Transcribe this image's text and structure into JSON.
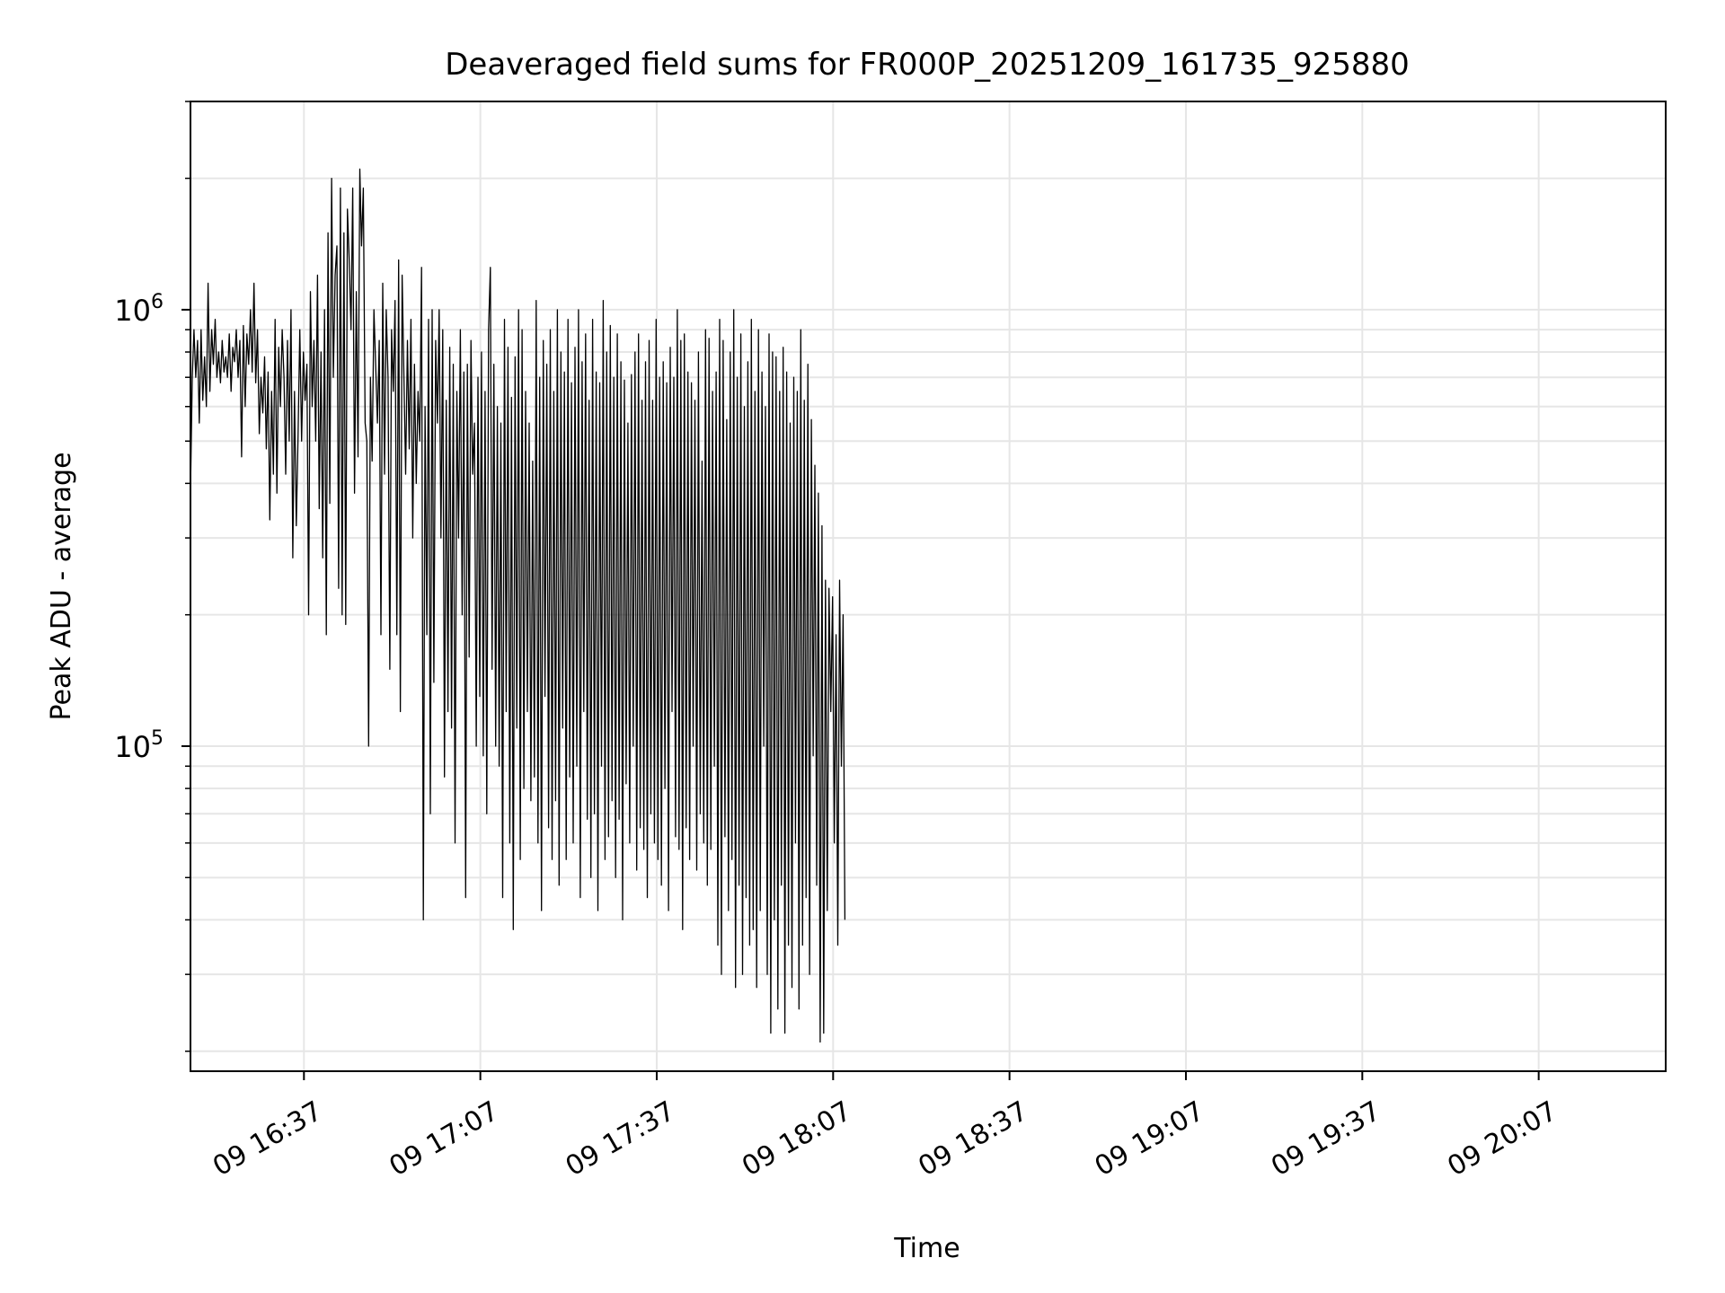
{
  "chart_data": {
    "type": "line",
    "title": "Deaveraged field sums for FR000P_20251209_161735_925880",
    "xlabel": "Time",
    "ylabel": "Peak ADU - average",
    "yscale": "log",
    "ylim": [
      18000,
      3000000
    ],
    "y_major_ticks": [
      {
        "value": 100000,
        "base": "10",
        "exp": "5"
      },
      {
        "value": 1000000,
        "base": "10",
        "exp": "6"
      }
    ],
    "xlim_minutes_since_1637": [
      -19.3,
      231.6
    ],
    "x_ticks": [
      {
        "minutes": 0,
        "label": "09 16:37"
      },
      {
        "minutes": 30,
        "label": "09 17:07"
      },
      {
        "minutes": 60,
        "label": "09 17:37"
      },
      {
        "minutes": 90,
        "label": "09 18:07"
      },
      {
        "minutes": 120,
        "label": "09 18:37"
      },
      {
        "minutes": 150,
        "label": "09 19:07"
      },
      {
        "minutes": 180,
        "label": "09 19:37"
      },
      {
        "minutes": 210,
        "label": "09 20:07"
      }
    ],
    "grid": true,
    "line_color": "#000000",
    "series": [
      {
        "name": "deaveraged field sum",
        "sample_interval_minutes": 0.3,
        "x_start_minutes": -19.3,
        "values": [
          380000,
          700000,
          900000,
          700000,
          850000,
          550000,
          900000,
          620000,
          780000,
          600000,
          1150000,
          650000,
          900000,
          750000,
          950000,
          700000,
          800000,
          680000,
          850000,
          720000,
          780000,
          700000,
          880000,
          650000,
          820000,
          760000,
          900000,
          700000,
          850000,
          460000,
          920000,
          600000,
          880000,
          750000,
          1000000,
          720000,
          1150000,
          680000,
          900000,
          520000,
          700000,
          580000,
          780000,
          480000,
          720000,
          330000,
          650000,
          420000,
          950000,
          380000,
          820000,
          600000,
          900000,
          700000,
          420000,
          850000,
          500000,
          1000000,
          270000,
          650000,
          320000,
          520000,
          900000,
          500000,
          800000,
          620000,
          750000,
          200000,
          1100000,
          600000,
          850000,
          500000,
          1200000,
          350000,
          800000,
          270000,
          1000000,
          180000,
          1500000,
          360000,
          2000000,
          700000,
          1200000,
          1400000,
          230000,
          1900000,
          200000,
          1500000,
          190000,
          1700000,
          1300000,
          900000,
          1900000,
          380000,
          1100000,
          460000,
          2100000,
          1400000,
          1900000,
          550000,
          500000,
          100000,
          700000,
          450000,
          1000000,
          750000,
          550000,
          850000,
          180000,
          1150000,
          420000,
          1000000,
          700000,
          150000,
          900000,
          650000,
          1050000,
          180000,
          1300000,
          120000,
          1200000,
          700000,
          420000,
          850000,
          480000,
          950000,
          300000,
          750000,
          400000,
          650000,
          500000,
          1250000,
          40000,
          600000,
          180000,
          950000,
          70000,
          1000000,
          140000,
          850000,
          550000,
          1000000,
          300000,
          900000,
          85000,
          620000,
          120000,
          820000,
          110000,
          750000,
          60000,
          650000,
          300000,
          900000,
          200000,
          720000,
          45000,
          750000,
          160000,
          850000,
          420000,
          550000,
          100000,
          700000,
          130000,
          800000,
          95000,
          650000,
          70000,
          900000,
          1250000,
          150000,
          750000,
          100000,
          600000,
          90000,
          550000,
          45000,
          950000,
          120000,
          820000,
          60000,
          630000,
          38000,
          780000,
          110000,
          1000000,
          55000,
          900000,
          80000,
          650000,
          120000,
          550000,
          75000,
          450000,
          85000,
          1050000,
          60000,
          700000,
          42000,
          850000,
          130000,
          750000,
          65000,
          900000,
          55000,
          650000,
          75000,
          1000000,
          48000,
          800000,
          110000,
          720000,
          55000,
          950000,
          85000,
          680000,
          60000,
          820000,
          90000,
          1000000,
          45000,
          760000,
          120000,
          880000,
          68000,
          620000,
          50000,
          950000,
          70000,
          720000,
          42000,
          680000,
          90000,
          1050000,
          55000,
          800000,
          62000,
          920000,
          75000,
          700000,
          50000,
          880000,
          68000,
          760000,
          40000,
          690000,
          82000,
          550000,
          60000,
          710000,
          100000,
          800000,
          52000,
          880000,
          65000,
          620000,
          58000,
          760000,
          45000,
          850000,
          70000,
          620000,
          60000,
          950000,
          55000,
          700000,
          48000,
          760000,
          80000,
          680000,
          42000,
          820000,
          120000,
          700000,
          62000,
          1000000,
          58000,
          850000,
          38000,
          880000,
          65000,
          720000,
          55000,
          680000,
          100000,
          620000,
          52000,
          800000,
          70000,
          450000,
          60000,
          900000,
          48000,
          860000,
          58000,
          650000,
          90000,
          720000,
          35000,
          950000,
          30000,
          850000,
          62000,
          560000,
          42000,
          800000,
          55000,
          1000000,
          28000,
          700000,
          48000,
          880000,
          30000,
          600000,
          45000,
          760000,
          35000,
          950000,
          38000,
          650000,
          28000,
          900000,
          42000,
          720000,
          100000,
          600000,
          30000,
          880000,
          22000,
          800000,
          40000,
          780000,
          25000,
          650000,
          48000,
          820000,
          22000,
          720000,
          35000,
          550000,
          28000,
          700000,
          60000,
          650000,
          25000,
          900000,
          35000,
          620000,
          45000,
          750000,
          30000,
          560000,
          95000,
          440000,
          48000,
          380000,
          21000,
          320000,
          22000,
          240000,
          42000,
          230000,
          120000,
          220000,
          60000,
          180000,
          35000,
          240000,
          90000,
          200000,
          40000
        ]
      }
    ]
  }
}
